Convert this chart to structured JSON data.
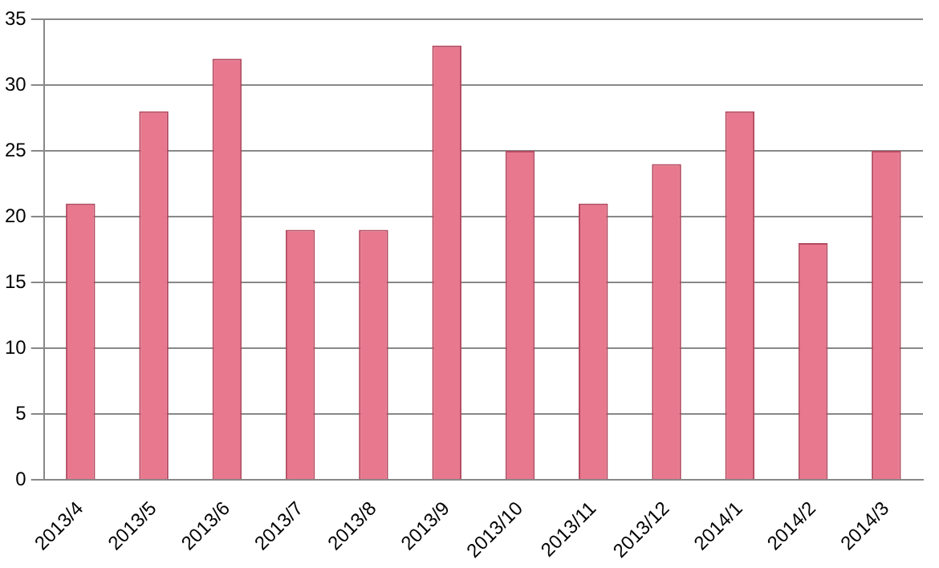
{
  "chart_data": {
    "type": "bar",
    "categories": [
      "2013/4",
      "2013/5",
      "2013/6",
      "2013/7",
      "2013/8",
      "2013/9",
      "2013/10",
      "2013/11",
      "2013/12",
      "2014/1",
      "2014/2",
      "2014/3"
    ],
    "values": [
      21,
      28,
      32,
      19,
      19,
      33,
      25,
      21,
      24,
      28,
      18,
      25
    ],
    "color": "#e8788e",
    "ylim": [
      0,
      35
    ],
    "yticks": [
      0,
      5,
      10,
      15,
      20,
      25,
      30,
      35
    ],
    "grid": "y",
    "legend": false
  }
}
